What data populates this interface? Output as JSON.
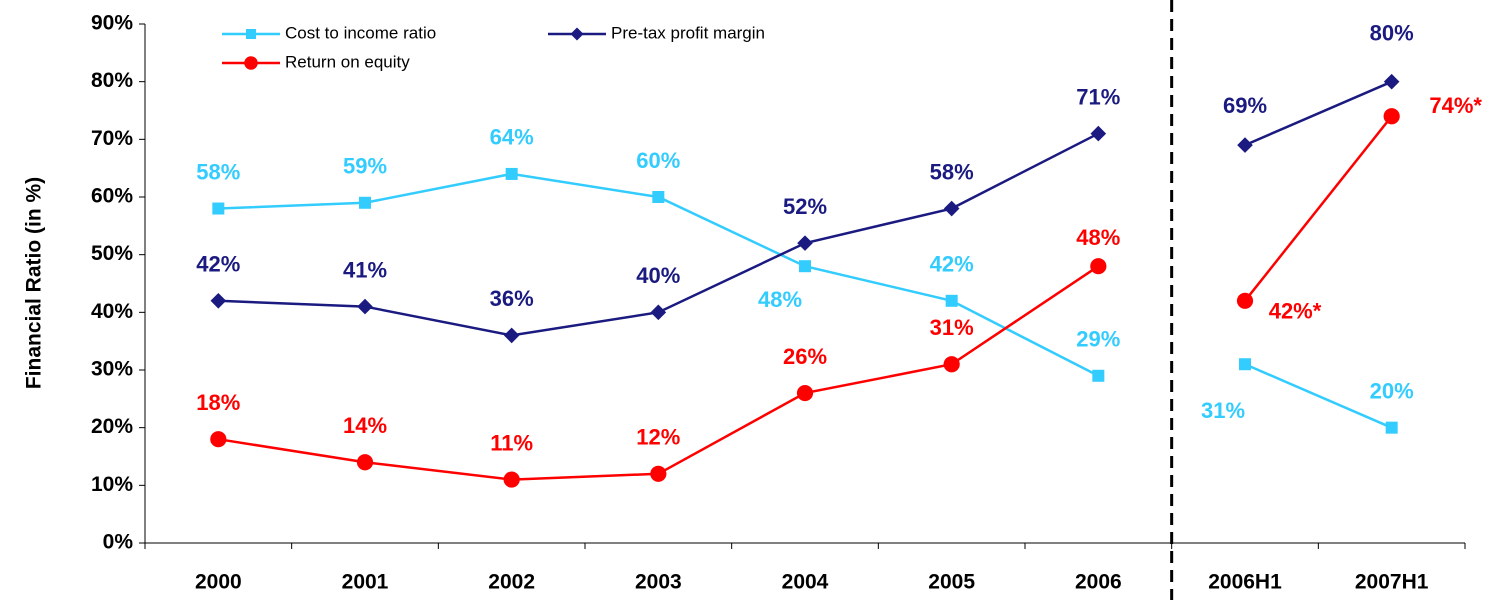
{
  "chart_data": {
    "type": "line",
    "y_axis_label": "Financial Ratio (in %)",
    "categories": [
      "2000",
      "2001",
      "2002",
      "2003",
      "2004",
      "2005",
      "2006",
      "2006H1",
      "2007H1"
    ],
    "divider_after_index": 6,
    "ylim": [
      0,
      90
    ],
    "yticks": [
      {
        "value": 0,
        "label": "0%"
      },
      {
        "value": 10,
        "label": "10%"
      },
      {
        "value": 20,
        "label": "20%"
      },
      {
        "value": 30,
        "label": "30%"
      },
      {
        "value": 40,
        "label": "40%"
      },
      {
        "value": 50,
        "label": "50%"
      },
      {
        "value": 60,
        "label": "60%"
      },
      {
        "value": 70,
        "label": "70%"
      },
      {
        "value": 80,
        "label": "80%"
      },
      {
        "value": 90,
        "label": "90%"
      }
    ],
    "legend": "top-left",
    "series": [
      {
        "name": "Cost to income ratio",
        "color": "#33ccff",
        "marker": "square",
        "values": [
          58,
          59,
          64,
          60,
          48,
          42,
          29,
          31,
          20
        ],
        "value_labels": [
          "58%",
          "59%",
          "64%",
          "60%",
          "48%",
          "42%",
          "29%",
          "31%",
          "20%"
        ]
      },
      {
        "name": "Pre-tax profit margin",
        "color": "#1a1a80",
        "marker": "diamond",
        "values": [
          42,
          41,
          36,
          40,
          52,
          58,
          71,
          69,
          80
        ],
        "value_labels": [
          "42%",
          "41%",
          "36%",
          "40%",
          "52%",
          "58%",
          "71%",
          "69%",
          "80%"
        ]
      },
      {
        "name": "Return on equity",
        "color": "#ff0000",
        "marker": "circle",
        "values": [
          18,
          14,
          11,
          12,
          26,
          31,
          48,
          42,
          74
        ],
        "value_labels": [
          "18%",
          "14%",
          "11%",
          "12%",
          "26%",
          "31%",
          "48%",
          "42%*",
          "74%*"
        ]
      }
    ]
  }
}
